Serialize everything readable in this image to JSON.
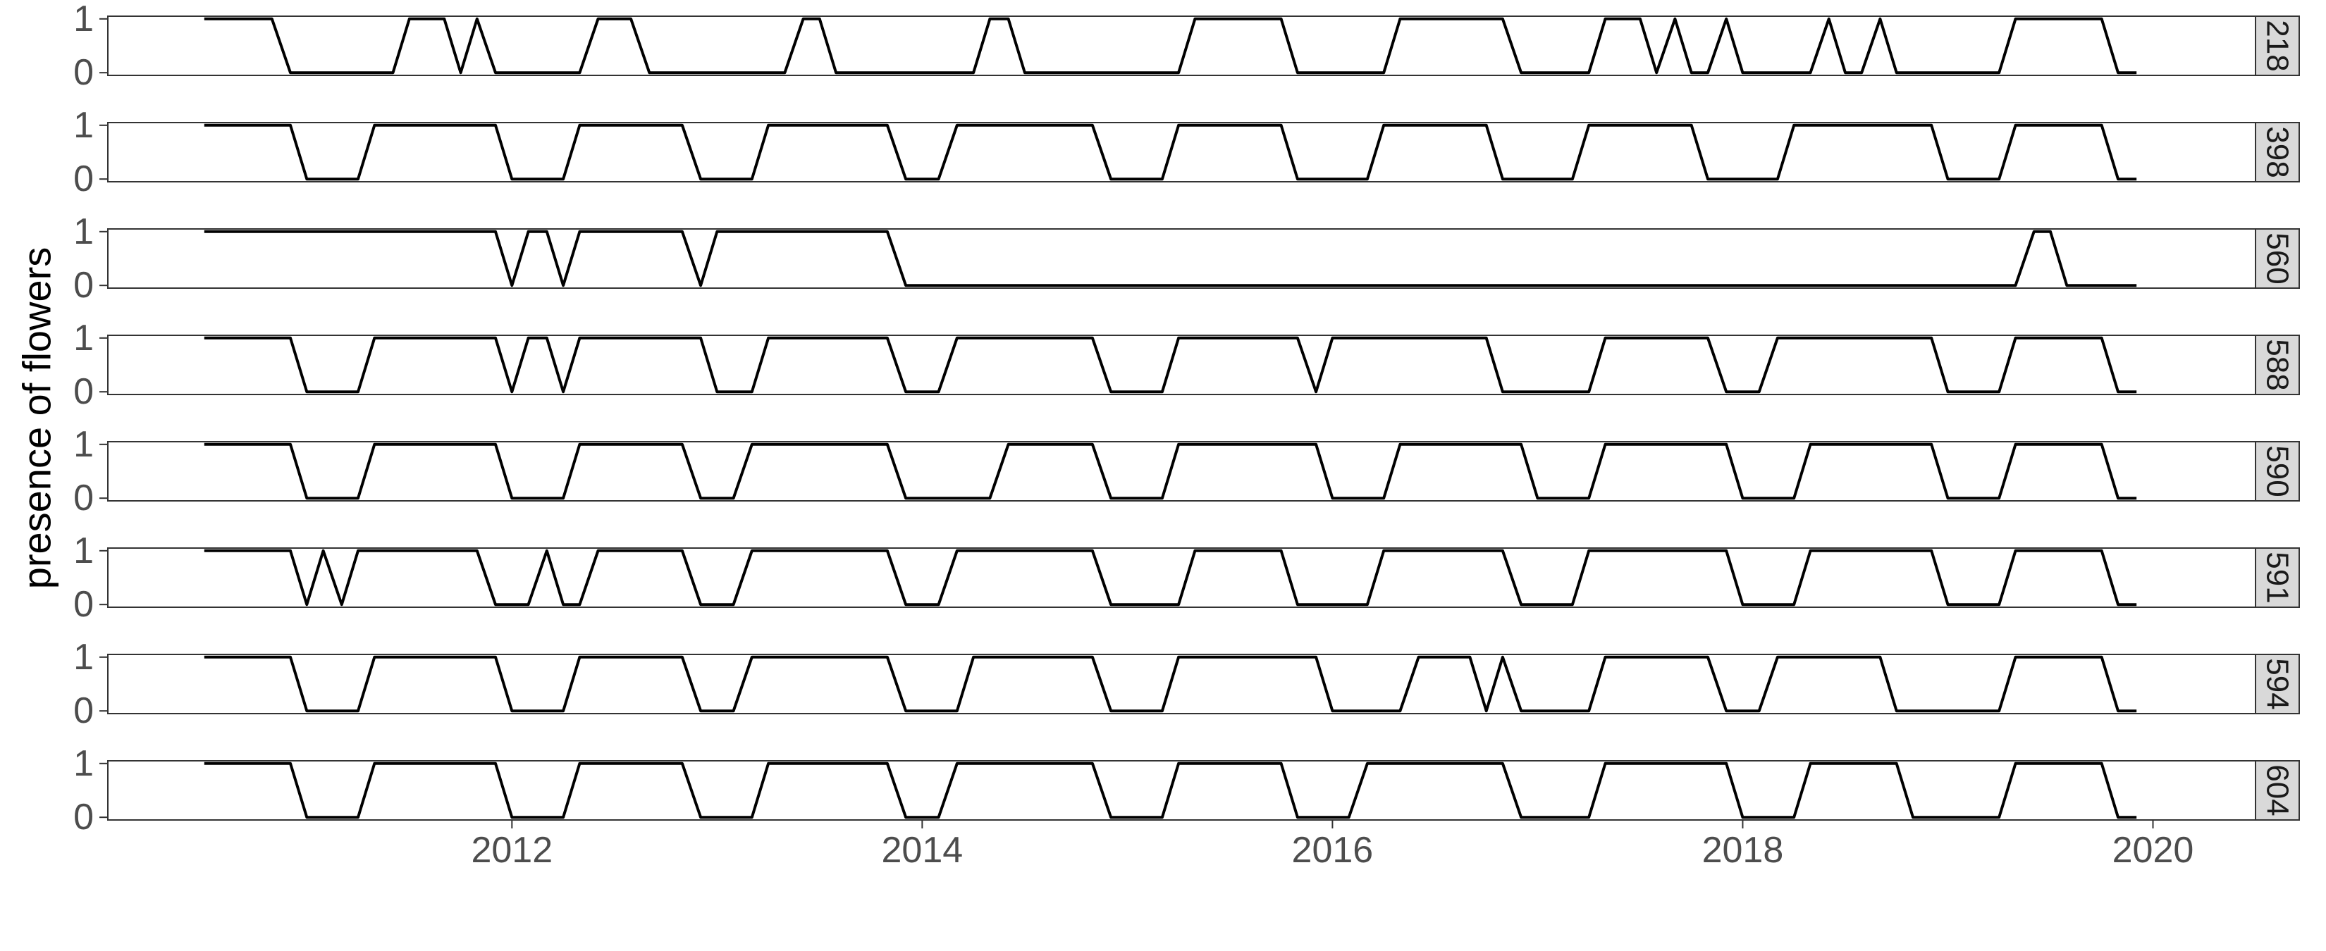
{
  "chart_data": {
    "type": "line",
    "ylabel": "presence of flowers",
    "xlabel": "",
    "title": "",
    "x_ticks": [
      "2012",
      "2014",
      "2016",
      "2018",
      "2020"
    ],
    "y_ticks": [
      "0",
      "1"
    ],
    "xlim": [
      2010.03,
      2020.5
    ],
    "ylim": [
      -0.05,
      1.05
    ],
    "grid": false,
    "legend": "none",
    "facet_labels_position": "right",
    "line_color": "#000000",
    "panel_border_color": "#333333",
    "strip_fill": "#d9d9d9",
    "series": [
      {
        "name": "218",
        "points": [
          [
            2010.5,
            1
          ],
          [
            2010.83,
            1
          ],
          [
            2010.92,
            0
          ],
          [
            2011.42,
            0
          ],
          [
            2011.5,
            1
          ],
          [
            2011.67,
            1
          ],
          [
            2011.75,
            0
          ],
          [
            2011.83,
            1
          ],
          [
            2011.92,
            0
          ],
          [
            2012.33,
            0
          ],
          [
            2012.42,
            1
          ],
          [
            2012.58,
            1
          ],
          [
            2012.67,
            0
          ],
          [
            2013.33,
            0
          ],
          [
            2013.42,
            1
          ],
          [
            2013.5,
            1
          ],
          [
            2013.58,
            0
          ],
          [
            2014.25,
            0
          ],
          [
            2014.33,
            1
          ],
          [
            2014.42,
            1
          ],
          [
            2014.5,
            0
          ],
          [
            2015.25,
            0
          ],
          [
            2015.33,
            1
          ],
          [
            2015.75,
            1
          ],
          [
            2015.83,
            0
          ],
          [
            2016.25,
            0
          ],
          [
            2016.33,
            1
          ],
          [
            2016.83,
            1
          ],
          [
            2016.92,
            0
          ],
          [
            2017.25,
            0
          ],
          [
            2017.33,
            1
          ],
          [
            2017.5,
            1
          ],
          [
            2017.58,
            0
          ],
          [
            2017.67,
            1
          ],
          [
            2017.75,
            0
          ],
          [
            2017.83,
            0
          ],
          [
            2017.92,
            1
          ],
          [
            2018.0,
            0
          ],
          [
            2018.33,
            0
          ],
          [
            2018.42,
            1
          ],
          [
            2018.5,
            0
          ],
          [
            2018.58,
            0
          ],
          [
            2018.67,
            1
          ],
          [
            2018.75,
            0
          ],
          [
            2019.25,
            0
          ],
          [
            2019.33,
            1
          ],
          [
            2019.75,
            1
          ],
          [
            2019.83,
            0
          ],
          [
            2019.92,
            0
          ]
        ]
      },
      {
        "name": "398",
        "points": [
          [
            2010.5,
            1
          ],
          [
            2010.92,
            1
          ],
          [
            2011.0,
            0
          ],
          [
            2011.25,
            0
          ],
          [
            2011.33,
            1
          ],
          [
            2011.92,
            1
          ],
          [
            2012.0,
            0
          ],
          [
            2012.25,
            0
          ],
          [
            2012.33,
            1
          ],
          [
            2012.83,
            1
          ],
          [
            2012.92,
            0
          ],
          [
            2013.17,
            0
          ],
          [
            2013.25,
            1
          ],
          [
            2013.83,
            1
          ],
          [
            2013.92,
            0
          ],
          [
            2014.08,
            0
          ],
          [
            2014.17,
            1
          ],
          [
            2014.83,
            1
          ],
          [
            2014.92,
            0
          ],
          [
            2015.17,
            0
          ],
          [
            2015.25,
            1
          ],
          [
            2015.75,
            1
          ],
          [
            2015.83,
            0
          ],
          [
            2016.17,
            0
          ],
          [
            2016.25,
            1
          ],
          [
            2016.75,
            1
          ],
          [
            2016.83,
            0
          ],
          [
            2017.17,
            0
          ],
          [
            2017.25,
            1
          ],
          [
            2017.75,
            1
          ],
          [
            2017.83,
            0
          ],
          [
            2018.17,
            0
          ],
          [
            2018.25,
            1
          ],
          [
            2018.92,
            1
          ],
          [
            2019.0,
            0
          ],
          [
            2019.25,
            0
          ],
          [
            2019.33,
            1
          ],
          [
            2019.75,
            1
          ],
          [
            2019.83,
            0
          ],
          [
            2019.92,
            0
          ]
        ]
      },
      {
        "name": "560",
        "points": [
          [
            2010.5,
            1
          ],
          [
            2011.92,
            1
          ],
          [
            2012.0,
            0
          ],
          [
            2012.08,
            1
          ],
          [
            2012.17,
            1
          ],
          [
            2012.25,
            0
          ],
          [
            2012.33,
            1
          ],
          [
            2012.83,
            1
          ],
          [
            2012.92,
            0
          ],
          [
            2013.0,
            1
          ],
          [
            2013.83,
            1
          ],
          [
            2013.92,
            0
          ],
          [
            2019.33,
            0
          ],
          [
            2019.42,
            1
          ],
          [
            2019.5,
            1
          ],
          [
            2019.58,
            0
          ],
          [
            2019.92,
            0
          ]
        ]
      },
      {
        "name": "588",
        "points": [
          [
            2010.5,
            1
          ],
          [
            2010.92,
            1
          ],
          [
            2011.0,
            0
          ],
          [
            2011.25,
            0
          ],
          [
            2011.33,
            1
          ],
          [
            2011.92,
            1
          ],
          [
            2012.0,
            0
          ],
          [
            2012.08,
            1
          ],
          [
            2012.17,
            1
          ],
          [
            2012.25,
            0
          ],
          [
            2012.33,
            1
          ],
          [
            2012.92,
            1
          ],
          [
            2013.0,
            0
          ],
          [
            2013.17,
            0
          ],
          [
            2013.25,
            1
          ],
          [
            2013.83,
            1
          ],
          [
            2013.92,
            0
          ],
          [
            2014.08,
            0
          ],
          [
            2014.17,
            1
          ],
          [
            2014.83,
            1
          ],
          [
            2014.92,
            0
          ],
          [
            2015.17,
            0
          ],
          [
            2015.25,
            1
          ],
          [
            2015.83,
            1
          ],
          [
            2015.92,
            0
          ],
          [
            2016.0,
            1
          ],
          [
            2016.75,
            1
          ],
          [
            2016.83,
            0
          ],
          [
            2017.25,
            0
          ],
          [
            2017.33,
            1
          ],
          [
            2017.83,
            1
          ],
          [
            2017.92,
            0
          ],
          [
            2018.08,
            0
          ],
          [
            2018.17,
            1
          ],
          [
            2018.92,
            1
          ],
          [
            2019.0,
            0
          ],
          [
            2019.25,
            0
          ],
          [
            2019.33,
            1
          ],
          [
            2019.75,
            1
          ],
          [
            2019.83,
            0
          ],
          [
            2019.92,
            0
          ]
        ]
      },
      {
        "name": "590",
        "points": [
          [
            2010.5,
            1
          ],
          [
            2010.92,
            1
          ],
          [
            2011.0,
            0
          ],
          [
            2011.25,
            0
          ],
          [
            2011.33,
            1
          ],
          [
            2011.92,
            1
          ],
          [
            2012.0,
            0
          ],
          [
            2012.25,
            0
          ],
          [
            2012.33,
            1
          ],
          [
            2012.83,
            1
          ],
          [
            2012.92,
            0
          ],
          [
            2013.08,
            0
          ],
          [
            2013.17,
            1
          ],
          [
            2013.83,
            1
          ],
          [
            2013.92,
            0
          ],
          [
            2014.33,
            0
          ],
          [
            2014.42,
            1
          ],
          [
            2014.83,
            1
          ],
          [
            2014.92,
            0
          ],
          [
            2015.17,
            0
          ],
          [
            2015.25,
            1
          ],
          [
            2015.92,
            1
          ],
          [
            2016.0,
            0
          ],
          [
            2016.25,
            0
          ],
          [
            2016.33,
            1
          ],
          [
            2016.92,
            1
          ],
          [
            2017.0,
            0
          ],
          [
            2017.25,
            0
          ],
          [
            2017.33,
            1
          ],
          [
            2017.92,
            1
          ],
          [
            2018.0,
            0
          ],
          [
            2018.25,
            0
          ],
          [
            2018.33,
            1
          ],
          [
            2018.92,
            1
          ],
          [
            2019.0,
            0
          ],
          [
            2019.25,
            0
          ],
          [
            2019.33,
            1
          ],
          [
            2019.75,
            1
          ],
          [
            2019.83,
            0
          ],
          [
            2019.92,
            0
          ]
        ]
      },
      {
        "name": "591",
        "points": [
          [
            2010.5,
            1
          ],
          [
            2010.92,
            1
          ],
          [
            2011.0,
            0
          ],
          [
            2011.08,
            1
          ],
          [
            2011.17,
            0
          ],
          [
            2011.25,
            1
          ],
          [
            2011.83,
            1
          ],
          [
            2011.92,
            0
          ],
          [
            2012.08,
            0
          ],
          [
            2012.17,
            1
          ],
          [
            2012.25,
            0
          ],
          [
            2012.33,
            0
          ],
          [
            2012.42,
            1
          ],
          [
            2012.83,
            1
          ],
          [
            2012.92,
            0
          ],
          [
            2013.08,
            0
          ],
          [
            2013.17,
            1
          ],
          [
            2013.83,
            1
          ],
          [
            2013.92,
            0
          ],
          [
            2014.08,
            0
          ],
          [
            2014.17,
            1
          ],
          [
            2014.83,
            1
          ],
          [
            2014.92,
            0
          ],
          [
            2015.25,
            0
          ],
          [
            2015.33,
            1
          ],
          [
            2015.75,
            1
          ],
          [
            2015.83,
            0
          ],
          [
            2016.17,
            0
          ],
          [
            2016.25,
            1
          ],
          [
            2016.83,
            1
          ],
          [
            2016.92,
            0
          ],
          [
            2017.17,
            0
          ],
          [
            2017.25,
            1
          ],
          [
            2017.92,
            1
          ],
          [
            2018.0,
            0
          ],
          [
            2018.25,
            0
          ],
          [
            2018.33,
            1
          ],
          [
            2018.92,
            1
          ],
          [
            2019.0,
            0
          ],
          [
            2019.25,
            0
          ],
          [
            2019.33,
            1
          ],
          [
            2019.75,
            1
          ],
          [
            2019.83,
            0
          ],
          [
            2019.92,
            0
          ]
        ]
      },
      {
        "name": "594",
        "points": [
          [
            2010.5,
            1
          ],
          [
            2010.92,
            1
          ],
          [
            2011.0,
            0
          ],
          [
            2011.25,
            0
          ],
          [
            2011.33,
            1
          ],
          [
            2011.92,
            1
          ],
          [
            2012.0,
            0
          ],
          [
            2012.25,
            0
          ],
          [
            2012.33,
            1
          ],
          [
            2012.83,
            1
          ],
          [
            2012.92,
            0
          ],
          [
            2013.08,
            0
          ],
          [
            2013.17,
            1
          ],
          [
            2013.83,
            1
          ],
          [
            2013.92,
            0
          ],
          [
            2014.17,
            0
          ],
          [
            2014.25,
            1
          ],
          [
            2014.83,
            1
          ],
          [
            2014.92,
            0
          ],
          [
            2015.17,
            0
          ],
          [
            2015.25,
            1
          ],
          [
            2015.92,
            1
          ],
          [
            2016.0,
            0
          ],
          [
            2016.33,
            0
          ],
          [
            2016.42,
            1
          ],
          [
            2016.67,
            1
          ],
          [
            2016.75,
            0
          ],
          [
            2016.83,
            1
          ],
          [
            2016.92,
            0
          ],
          [
            2017.25,
            0
          ],
          [
            2017.33,
            1
          ],
          [
            2017.83,
            1
          ],
          [
            2017.92,
            0
          ],
          [
            2018.08,
            0
          ],
          [
            2018.17,
            1
          ],
          [
            2018.67,
            1
          ],
          [
            2018.75,
            0
          ],
          [
            2019.25,
            0
          ],
          [
            2019.33,
            1
          ],
          [
            2019.75,
            1
          ],
          [
            2019.83,
            0
          ],
          [
            2019.92,
            0
          ]
        ]
      },
      {
        "name": "604",
        "points": [
          [
            2010.5,
            1
          ],
          [
            2010.92,
            1
          ],
          [
            2011.0,
            0
          ],
          [
            2011.25,
            0
          ],
          [
            2011.33,
            1
          ],
          [
            2011.92,
            1
          ],
          [
            2012.0,
            0
          ],
          [
            2012.25,
            0
          ],
          [
            2012.33,
            1
          ],
          [
            2012.83,
            1
          ],
          [
            2012.92,
            0
          ],
          [
            2013.17,
            0
          ],
          [
            2013.25,
            1
          ],
          [
            2013.83,
            1
          ],
          [
            2013.92,
            0
          ],
          [
            2014.08,
            0
          ],
          [
            2014.17,
            1
          ],
          [
            2014.83,
            1
          ],
          [
            2014.92,
            0
          ],
          [
            2015.17,
            0
          ],
          [
            2015.25,
            1
          ],
          [
            2015.75,
            1
          ],
          [
            2015.83,
            0
          ],
          [
            2016.08,
            0
          ],
          [
            2016.17,
            1
          ],
          [
            2016.83,
            1
          ],
          [
            2016.92,
            0
          ],
          [
            2017.25,
            0
          ],
          [
            2017.33,
            1
          ],
          [
            2017.92,
            1
          ],
          [
            2018.0,
            0
          ],
          [
            2018.25,
            0
          ],
          [
            2018.33,
            1
          ],
          [
            2018.75,
            1
          ],
          [
            2018.83,
            0
          ],
          [
            2019.25,
            0
          ],
          [
            2019.33,
            1
          ],
          [
            2019.75,
            1
          ],
          [
            2019.83,
            0
          ],
          [
            2019.92,
            0
          ]
        ]
      }
    ]
  }
}
